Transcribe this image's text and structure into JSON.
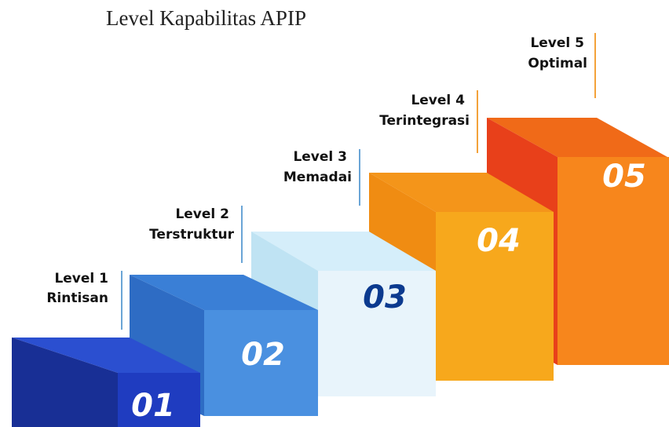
{
  "title": "Level Kapabilitas APIP",
  "levels": [
    {
      "level": "Level 1",
      "name": "Rintisan",
      "number": "01"
    },
    {
      "level": "Level 2",
      "name": "Terstruktur",
      "number": "02"
    },
    {
      "level": "Level 3",
      "name": "Memadai",
      "number": "03"
    },
    {
      "level": "Level 4",
      "name": "Terintegrasi",
      "number": "04"
    },
    {
      "level": "Level 5",
      "name": "Optimal",
      "number": "05"
    }
  ]
}
